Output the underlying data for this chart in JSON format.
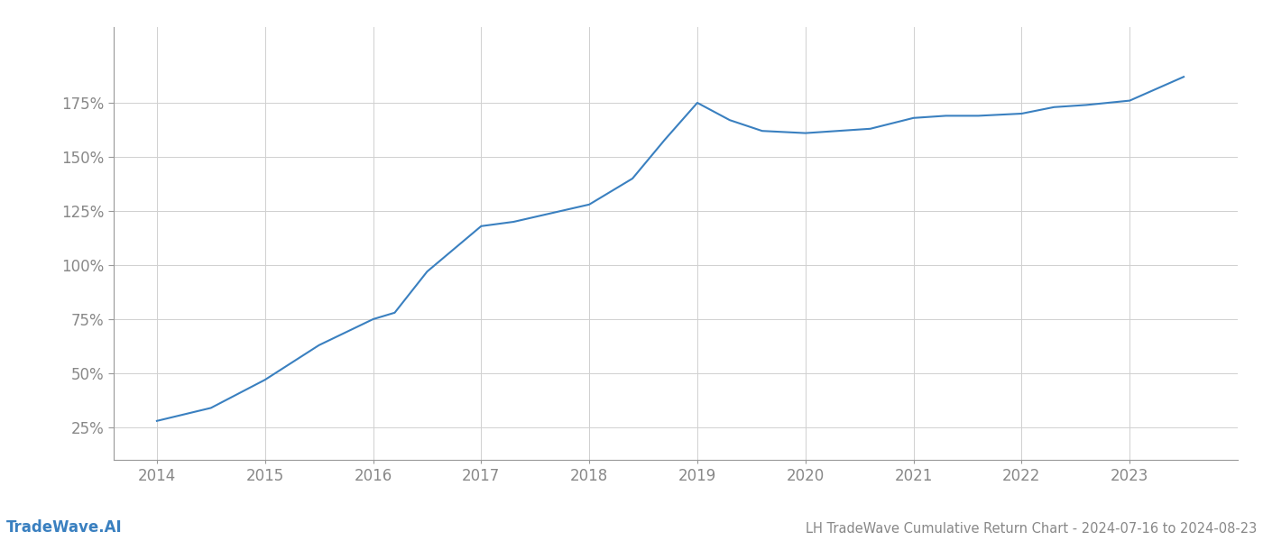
{
  "title": "LH TradeWave Cumulative Return Chart - 2024-07-16 to 2024-08-23",
  "watermark": "TradeWave.AI",
  "line_color": "#3a80c0",
  "background_color": "#ffffff",
  "grid_color": "#d0d0d0",
  "x_values": [
    2014,
    2014.5,
    2015,
    2015.5,
    2016,
    2016.2,
    2016.5,
    2017,
    2017.3,
    2018,
    2018.4,
    2018.7,
    2019,
    2019.3,
    2019.6,
    2020,
    2020.3,
    2020.6,
    2021,
    2021.3,
    2021.6,
    2022,
    2022.3,
    2022.6,
    2023,
    2023.5
  ],
  "y_values": [
    28,
    34,
    47,
    63,
    75,
    78,
    97,
    118,
    120,
    128,
    140,
    158,
    175,
    167,
    162,
    161,
    162,
    163,
    168,
    169,
    169,
    170,
    173,
    174,
    176,
    187
  ],
  "xlim": [
    2013.6,
    2024.0
  ],
  "ylim": [
    10,
    210
  ],
  "yticks": [
    25,
    50,
    75,
    100,
    125,
    150,
    175
  ],
  "ytick_labels": [
    "25%",
    "50%",
    "75%",
    "100%",
    "125%",
    "150%",
    "175%"
  ],
  "xticks": [
    2014,
    2015,
    2016,
    2017,
    2018,
    2019,
    2020,
    2021,
    2022,
    2023
  ],
  "line_width": 1.5,
  "title_fontsize": 10.5,
  "tick_fontsize": 12,
  "watermark_fontsize": 12
}
